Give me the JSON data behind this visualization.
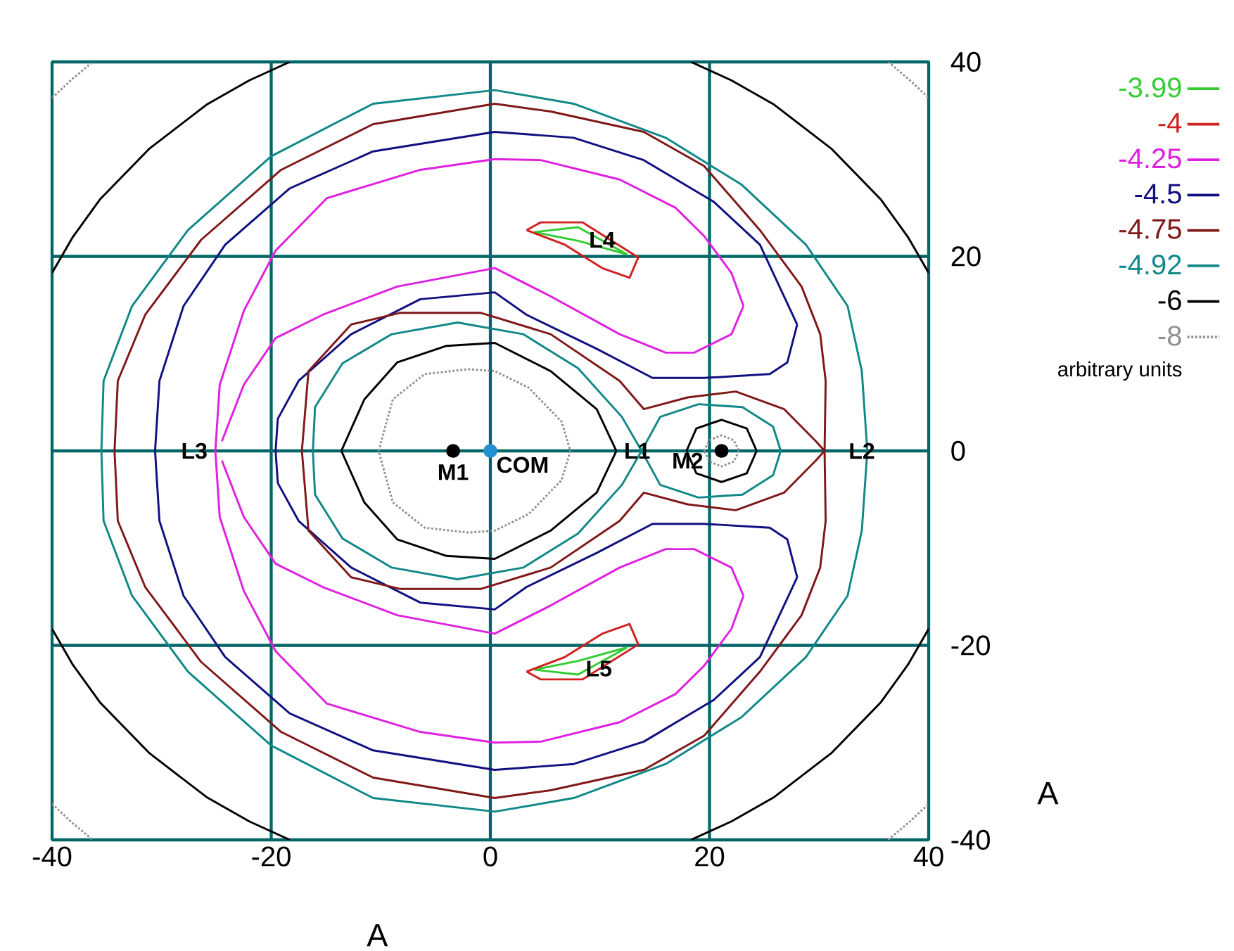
{
  "chart_data": {
    "type": "line",
    "xlabel": "A",
    "ylabel": "A",
    "legend_title": "arbitrary units",
    "xlim": [
      -40,
      40
    ],
    "ylim": [
      -40,
      40
    ],
    "xticks": [
      -40,
      -20,
      0,
      20,
      40
    ],
    "yticks": [
      -40,
      -20,
      0,
      20,
      40
    ],
    "grid": true,
    "legend": "right",
    "series": [
      {
        "name": "-3.99",
        "color": "#33cc33",
        "x": [
          4,
          8,
          12.5,
          null,
          12.5,
          8,
          4,
          null,
          4,
          8,
          12.5,
          null,
          12.5,
          8,
          4
        ],
        "values": [
          22.5,
          23,
          20.2,
          null,
          20.2,
          21.6,
          22.5,
          null,
          -22.5,
          -23,
          -20.2,
          null,
          -20.2,
          -21.6,
          -22.5
        ]
      },
      {
        "name": "-4",
        "color": "#d02020",
        "x": [
          3.3,
          4.6,
          8.4,
          13.5,
          null,
          13.5,
          12.7,
          10.2,
          6.8,
          3.3,
          null,
          3.3,
          4.6,
          8.4,
          13.5,
          null,
          13.5,
          12.7,
          10.2,
          6.8,
          3.3
        ],
        "values": [
          22.7,
          23.5,
          23.5,
          19.9,
          null,
          19.9,
          17.8,
          18.8,
          21.2,
          22.7,
          null,
          -22.7,
          -23.5,
          -23.5,
          -19.9,
          null,
          -19.9,
          -17.8,
          -18.8,
          -21.2,
          -22.7
        ]
      },
      {
        "name": "-4.25",
        "color": "#e020e0",
        "x": [
          -25.1,
          -24.7,
          -22.5,
          -19.6,
          -14.9,
          -6.4,
          0.4,
          4.6,
          11.8,
          16.9,
          19.5,
          22,
          23.1,
          null,
          23.1,
          22,
          18.6,
          16,
          11.8,
          5.5,
          0.4,
          -8.5,
          -15.3,
          -19.6,
          -22.5,
          -24.5,
          null,
          -24.5,
          -22.5,
          -19.6,
          -15.3,
          -8.5,
          0.4,
          5.5,
          11.8,
          16,
          18.6,
          22,
          23.1,
          null,
          23.1,
          22,
          19.5,
          16.9,
          11.8,
          4.6,
          0.4,
          -6.4,
          -14.9,
          -19.6,
          -22.5,
          -24.7,
          -25.1
        ],
        "values": [
          0,
          6.8,
          14.4,
          20.6,
          26,
          28.9,
          30,
          29.9,
          27.9,
          25,
          22.1,
          18.3,
          14.9,
          null,
          14.9,
          12,
          10.1,
          10.1,
          12,
          15.9,
          18.8,
          16.9,
          14,
          11.6,
          6.8,
          1,
          null,
          -1,
          -6.8,
          -11.6,
          -14,
          -16.9,
          -18.8,
          -15.9,
          -12,
          -10.1,
          -10.1,
          -12,
          -14.9,
          null,
          -14.9,
          -18.3,
          -22.1,
          -25,
          -27.9,
          -29.9,
          -30,
          -28.9,
          -26,
          -20.6,
          -14.4,
          -6.8,
          0
        ]
      },
      {
        "name": "-4.5",
        "color": "#101080",
        "x": [
          -30.6,
          -30.2,
          -28,
          -24.2,
          -18.3,
          -10.7,
          0.4,
          7.6,
          14,
          20.4,
          24.6,
          28,
          null,
          28,
          27.1,
          25.5,
          19.5,
          14.8,
          9.7,
          3.3,
          0.4,
          -6.4,
          -12.7,
          -17.5,
          -19.4,
          -19.6,
          null,
          -19.6,
          -19.4,
          -17.5,
          -12.7,
          -6.4,
          0.4,
          3.3,
          9.7,
          14.8,
          19.5,
          25.5,
          27.1,
          28,
          null,
          28,
          24.6,
          20.4,
          14,
          7.6,
          0.4,
          -10.7,
          -18.3,
          -24.2,
          -28,
          -30.2,
          -30.6
        ],
        "values": [
          0,
          7.2,
          14.9,
          21.2,
          27,
          30.8,
          32.8,
          32.2,
          29.9,
          25.6,
          21.2,
          13,
          null,
          13,
          9.1,
          7.9,
          7.5,
          7.5,
          10.5,
          14,
          16.3,
          15.6,
          12,
          7.2,
          3.3,
          0,
          null,
          0,
          -3.3,
          -7.2,
          -12,
          -15.6,
          -16.3,
          -14,
          -10.5,
          -7.5,
          -7.5,
          -7.9,
          -9.1,
          -13,
          null,
          -13,
          -21.2,
          -25.6,
          -29.9,
          -32.2,
          -32.8,
          -30.8,
          -27,
          -21.2,
          -14.9,
          -7.2,
          0
        ]
      },
      {
        "name": "-4.75",
        "color": "#801818",
        "x": [
          -34.3,
          -34,
          -31.5,
          -26.4,
          -19.1,
          -10.7,
          0.4,
          5.5,
          14,
          19.5,
          24.6,
          28.4,
          30.1,
          30.6,
          null,
          30.6,
          30.5,
          29.7,
          26.8,
          22.4,
          18,
          14,
          11.8,
          5.5,
          -0.9,
          -8.2,
          -12.7,
          -16.6,
          -17.2,
          null,
          -17.2,
          -16.6,
          -12.7,
          -8.2,
          -0.9,
          5.5,
          11.8,
          14,
          18,
          22.4,
          26.8,
          29.7,
          30.5,
          30.6,
          null,
          30.6,
          30.1,
          28.4,
          24.6,
          19.5,
          14,
          5.5,
          0.4,
          -10.7,
          -19.1,
          -26.4,
          -31.5,
          -34,
          -34.3
        ],
        "values": [
          0,
          7.2,
          14,
          21.7,
          28.9,
          33.6,
          35.7,
          34.9,
          32.8,
          29.3,
          22.7,
          16.9,
          12,
          7.2,
          null,
          7.2,
          0,
          1,
          4.3,
          6.1,
          5.5,
          4.3,
          7.2,
          12,
          14.2,
          14.2,
          13,
          8.2,
          0,
          null,
          0,
          -8.2,
          -13,
          -14.2,
          -14.2,
          -12,
          -7.2,
          -4.3,
          -5.5,
          -6.1,
          -4.3,
          -1,
          0,
          -7.2,
          null,
          -7.2,
          -12,
          -16.9,
          -22.7,
          -29.3,
          -32.8,
          -34.9,
          -35.7,
          -33.6,
          -28.9,
          -21.7,
          -14,
          -7.2,
          0
        ]
      },
      {
        "name": "-4.92",
        "color": "#108888",
        "x": [
          -35.5,
          -35.3,
          -32.7,
          -27.6,
          -20,
          -10.7,
          0.4,
          7.6,
          16,
          22.9,
          28.8,
          32.6,
          33.9,
          34.4,
          null,
          34.4,
          33.9,
          32.6,
          28.8,
          22.9,
          16,
          7.6,
          0.4,
          -10.7,
          -20,
          -27.6,
          -32.7,
          -35.3,
          -35.5,
          null,
          13.8,
          12,
          8,
          3,
          -3,
          -9,
          -13.5,
          -16,
          -16.2,
          null,
          -16.2,
          -16,
          -13.5,
          -9,
          -3,
          3,
          8,
          12,
          13.8,
          15.5,
          19,
          23,
          25.8,
          26.5,
          null,
          26.5,
          25.8,
          23,
          19,
          15.5,
          13.8
        ],
        "values": [
          0,
          7.2,
          14.9,
          22.7,
          30.3,
          35.7,
          37.1,
          35.7,
          32.2,
          27.4,
          21.2,
          14.9,
          8.2,
          0,
          null,
          0,
          -8.2,
          -14.9,
          -21.2,
          -27.4,
          -32.2,
          -35.7,
          -37.1,
          -35.7,
          -30.3,
          -22.7,
          -14.9,
          -7.2,
          0,
          null,
          0,
          3.5,
          8.5,
          12,
          13.2,
          12,
          9,
          4.5,
          0,
          null,
          0,
          -4.5,
          -9,
          -12,
          -13.2,
          -12,
          -8.5,
          -3.5,
          0,
          -3.5,
          -4.8,
          -4.5,
          -2.5,
          0,
          null,
          0,
          2.5,
          4.5,
          4.8,
          3.5,
          0
        ]
      },
      {
        "name": "-6",
        "color": "#000000",
        "x": [
          -13.6,
          -11.5,
          -8.5,
          -4,
          0.4,
          5.5,
          9.7,
          11.5,
          null,
          11.5,
          9.7,
          5.5,
          0.4,
          -4,
          -8.5,
          -11.5,
          -13.6,
          null,
          17.9,
          18.8,
          21.1,
          23.4,
          24.3,
          null,
          24.3,
          23.4,
          21.1,
          18.8,
          17.9,
          null,
          18.3,
          22,
          25.9,
          31.1,
          35.6,
          38.1,
          40,
          null,
          -40,
          -38.1,
          -35.6,
          -31.1,
          -25.9,
          -22,
          -18.3,
          null,
          -40,
          -38.1,
          -35.6,
          -31.1,
          -25.9,
          -22,
          -18.3,
          null,
          18.3,
          22,
          25.9,
          31.1,
          35.6,
          38.1,
          40
        ],
        "values": [
          0,
          5.3,
          9.1,
          10.8,
          11.1,
          8.2,
          4.3,
          0,
          null,
          0,
          -4.3,
          -8.2,
          -11.1,
          -10.8,
          -9.1,
          -5.3,
          0,
          null,
          0,
          2.3,
          3.2,
          2.3,
          0,
          null,
          0,
          -2.3,
          -3.2,
          -2.3,
          0,
          null,
          40,
          38.1,
          35.6,
          31.1,
          25.9,
          22,
          18.3,
          null,
          18.3,
          22,
          25.9,
          31.1,
          35.6,
          38.1,
          40,
          null,
          -18.3,
          -22,
          -25.9,
          -31.1,
          -35.6,
          -38.1,
          -40,
          null,
          -40,
          -38.1,
          -35.6,
          -31.1,
          -25.9,
          -22,
          -18.3
        ]
      },
      {
        "name": "-8",
        "color": "#909090",
        "line_style": "dotted",
        "x": [
          -10.2,
          -8.9,
          -6,
          -2,
          0.4,
          3.5,
          6.5,
          7.3,
          null,
          7.3,
          6.5,
          3.5,
          0.4,
          -2,
          -6,
          -8.9,
          -10.2,
          null,
          19.5,
          20,
          21.1,
          22.2,
          22.7,
          null,
          22.7,
          22.2,
          21.1,
          20,
          19.5,
          null,
          36.3,
          38.2,
          40,
          null,
          -40,
          -38.2,
          -36.3,
          null,
          -40,
          -38.2,
          -36.3,
          null,
          36.3,
          38.2,
          40
        ],
        "values": [
          0,
          5.3,
          7.9,
          8.4,
          8.2,
          6.5,
          3,
          0,
          null,
          0,
          -3,
          -6.5,
          -8.2,
          -8.4,
          -7.9,
          -5.3,
          0,
          null,
          0,
          1.1,
          1.6,
          1.1,
          0,
          null,
          0,
          -1.1,
          -1.6,
          -1.1,
          0,
          null,
          40,
          38.2,
          36.3,
          null,
          36.3,
          38.2,
          40,
          null,
          -36.3,
          -38.2,
          -40,
          null,
          -40,
          -38.2,
          -36.3
        ]
      },
      {
        "type": "scatter",
        "color": "#000000",
        "x": [
          -3.4
        ],
        "values": [
          0
        ]
      },
      {
        "type": "scatter",
        "color": "#2090d0",
        "x": [
          0
        ],
        "values": [
          0
        ]
      },
      {
        "type": "scatter",
        "color": "#000000",
        "x": [
          21.1
        ],
        "values": [
          0
        ]
      }
    ],
    "annotations": [
      {
        "text": "L1",
        "x": 13.4,
        "y": 0
      },
      {
        "text": "L2",
        "x": 33.9,
        "y": 0
      },
      {
        "text": "L3",
        "x": -25.1,
        "y": 0
      },
      {
        "text": "L4",
        "x": 10.2,
        "y": 21.7
      },
      {
        "text": "L5",
        "x": 9.9,
        "y": -22.4
      },
      {
        "text": "M1",
        "x": -3.4,
        "y": 0
      },
      {
        "text": "COM",
        "x": 0,
        "y": 0
      },
      {
        "text": "M2",
        "x": 18,
        "y": -1
      }
    ]
  }
}
